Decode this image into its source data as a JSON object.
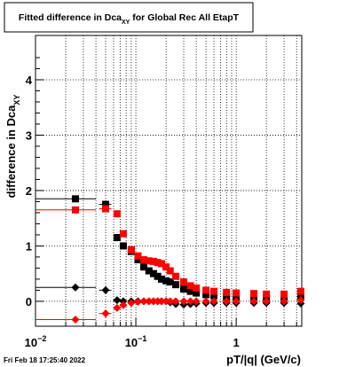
{
  "title": {
    "main": "Fitted difference in Dca",
    "subscript": "XY",
    "suffix": " for Global Rec All EtapT"
  },
  "footer_timestamp": "Fri Feb 18 17:25:40 2022",
  "chart_data": {
    "type": "scatter",
    "title": "Fitted difference in Dca_XY for Global Rec All EtapT",
    "xlabel": "pT/|q| (GeV/c)",
    "ylabel": "difference in Dca_XY",
    "xscale": "log",
    "xlim": [
      0.01,
      4.5
    ],
    "ylim": [
      -0.45,
      4.8
    ],
    "grid": true,
    "legend": "none",
    "x_tick_labels": [
      {
        "value": 0.01,
        "base": "10",
        "exp": "−2"
      },
      {
        "value": 0.1,
        "base": "10",
        "exp": "−1"
      },
      {
        "value": 1,
        "base": "1",
        "exp": ""
      }
    ],
    "y_ticks": [
      0,
      1,
      2,
      3,
      4
    ],
    "series": [
      {
        "color": "#000000",
        "marker": "square",
        "x": [
          0.025,
          0.05,
          0.065,
          0.075,
          0.09,
          0.105,
          0.12,
          0.135,
          0.15,
          0.165,
          0.18,
          0.2,
          0.22,
          0.25,
          0.3,
          0.35,
          0.4,
          0.5,
          0.6,
          0.8,
          1.0,
          1.5,
          2.0,
          3.0,
          4.4
        ],
        "y": [
          1.85,
          1.75,
          1.15,
          1.0,
          0.9,
          0.75,
          0.62,
          0.55,
          0.5,
          0.45,
          0.4,
          0.37,
          0.35,
          0.3,
          0.22,
          0.18,
          0.15,
          0.12,
          0.1,
          0.08,
          0.07,
          0.06,
          0.05,
          0.05,
          0.1
        ],
        "x_err": [
          0.015,
          0.007,
          0,
          0,
          0,
          0,
          0,
          0,
          0,
          0,
          0,
          0,
          0,
          0,
          0,
          0,
          0,
          0,
          0,
          0,
          0,
          0,
          0,
          0,
          0
        ]
      },
      {
        "color": "#ff0000",
        "marker": "square",
        "x": [
          0.025,
          0.05,
          0.065,
          0.075,
          0.09,
          0.105,
          0.12,
          0.135,
          0.15,
          0.165,
          0.18,
          0.2,
          0.22,
          0.25,
          0.3,
          0.35,
          0.4,
          0.5,
          0.6,
          0.8,
          1.0,
          1.5,
          2.0,
          3.0,
          4.4
        ],
        "y": [
          1.65,
          1.67,
          1.58,
          1.22,
          0.93,
          0.82,
          0.75,
          0.73,
          0.72,
          0.7,
          0.68,
          0.62,
          0.55,
          0.45,
          0.35,
          0.28,
          0.24,
          0.2,
          0.18,
          0.16,
          0.15,
          0.14,
          0.13,
          0.13,
          0.18
        ],
        "x_err": [
          0.015,
          0.007,
          0,
          0,
          0,
          0,
          0,
          0,
          0,
          0,
          0,
          0,
          0,
          0,
          0,
          0,
          0,
          0,
          0,
          0,
          0,
          0,
          0,
          0,
          0
        ]
      },
      {
        "color": "#000000",
        "marker": "diamond",
        "x": [
          0.025,
          0.05,
          0.065,
          0.075,
          0.09,
          0.105,
          0.12,
          0.135,
          0.15,
          0.165,
          0.18,
          0.2,
          0.22,
          0.25,
          0.3,
          0.35,
          0.4,
          0.5,
          0.6,
          0.8,
          1.0,
          1.5,
          2.0,
          3.0,
          4.4
        ],
        "y": [
          0.25,
          0.2,
          0.02,
          0.0,
          0.0,
          0.0,
          0.0,
          0.0,
          0.0,
          0.0,
          0.0,
          0.0,
          -0.02,
          -0.05,
          -0.06,
          -0.05,
          -0.04,
          -0.03,
          -0.03,
          -0.03,
          -0.03,
          -0.03,
          -0.03,
          -0.03,
          -0.04
        ],
        "x_err": [
          0.015,
          0.007,
          0,
          0,
          0,
          0,
          0,
          0,
          0,
          0,
          0,
          0,
          0,
          0,
          0,
          0,
          0,
          0,
          0,
          0,
          0,
          0,
          0,
          0,
          0
        ]
      },
      {
        "color": "#ff0000",
        "marker": "diamond",
        "x": [
          0.025,
          0.05,
          0.065,
          0.075,
          0.09,
          0.105,
          0.12,
          0.135,
          0.15,
          0.165,
          0.18,
          0.2,
          0.22,
          0.25,
          0.3,
          0.35,
          0.4,
          0.5,
          0.6,
          0.8,
          1.0,
          1.5,
          2.0,
          3.0,
          4.4
        ],
        "y": [
          -0.33,
          -0.22,
          -0.12,
          -0.07,
          -0.03,
          -0.01,
          0.0,
          0.0,
          0.0,
          0.0,
          0.0,
          0.0,
          0.0,
          0.0,
          0.0,
          0.0,
          0.0,
          0.0,
          0.0,
          0.0,
          0.0,
          0.0,
          0.0,
          0.0,
          0.02
        ],
        "x_err": [
          0.015,
          0.007,
          0,
          0,
          0,
          0,
          0,
          0,
          0,
          0,
          0,
          0,
          0,
          0,
          0,
          0,
          0,
          0,
          0,
          0,
          0,
          0,
          0,
          0,
          0
        ]
      }
    ]
  }
}
